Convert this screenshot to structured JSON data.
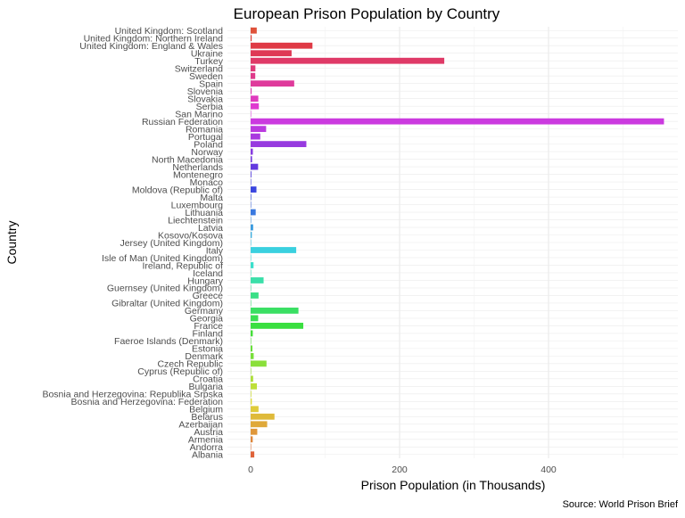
{
  "chart_data": {
    "type": "bar",
    "orientation": "horizontal",
    "title": "European Prison Population by Country",
    "xlabel": "Prison Population (in Thousands)",
    "ylabel": "Country",
    "caption": "Source: World Prison Brief",
    "xlim": [
      0,
      560
    ],
    "xticks": [
      0,
      200,
      400
    ],
    "grid": true,
    "legend": "none",
    "categories": [
      "Albania",
      "Andorra",
      "Armenia",
      "Austria",
      "Azerbaijan",
      "Belarus",
      "Belgium",
      "Bosnia and Herzegovina: Federation",
      "Bosnia and Herzegovina: Republika Srpska",
      "Bulgaria",
      "Croatia",
      "Cyprus (Republic of)",
      "Czech Republic",
      "Denmark",
      "Estonia",
      "Faeroe Islands  (Denmark)",
      "Finland",
      "France",
      "Georgia",
      "Germany",
      "Gibraltar  (United Kingdom)",
      "Greece",
      "Guernsey  (United Kingdom)",
      "Hungary",
      "Iceland",
      "Ireland, Republic of",
      "Isle of Man  (United Kingdom)",
      "Italy",
      "Jersey  (United Kingdom)",
      "Kosovo/Kosova",
      "Latvia",
      "Liechtenstein",
      "Lithuania",
      "Luxembourg",
      "Malta",
      "Moldova (Republic of)",
      "Monaco",
      "Montenegro",
      "Netherlands",
      "North Macedonia",
      "Norway",
      "Poland",
      "Portugal",
      "Romania",
      "Russian Federation",
      "San Marino",
      "Serbia",
      "Slovakia",
      "Slovenia",
      "Spain",
      "Sweden",
      "Switzerland",
      "Turkey",
      "Ukraine",
      "United Kingdom: England & Wales",
      "United Kingdom: Northern Ireland",
      "United Kingdom: Scotland"
    ],
    "values": [
      4.9,
      0.05,
      2.8,
      8.9,
      22.2,
      32.0,
      10.6,
      1.6,
      0.9,
      8.4,
      3.4,
      0.7,
      21.3,
      4.1,
      2.4,
      0.01,
      2.9,
      70.7,
      10.1,
      64.2,
      0.06,
      10.6,
      0.1,
      17.4,
      0.14,
      3.9,
      0.1,
      61.2,
      0.2,
      1.6,
      3.4,
      0.01,
      6.8,
      0.6,
      0.8,
      7.8,
      0.01,
      1.0,
      10.0,
      1.9,
      3.0,
      74.8,
      12.9,
      20.8,
      555.0,
      0.003,
      11.0,
      10.3,
      1.3,
      58.5,
      6.2,
      6.4,
      260.0,
      55.0,
      83.0,
      1.4,
      8.2
    ]
  }
}
